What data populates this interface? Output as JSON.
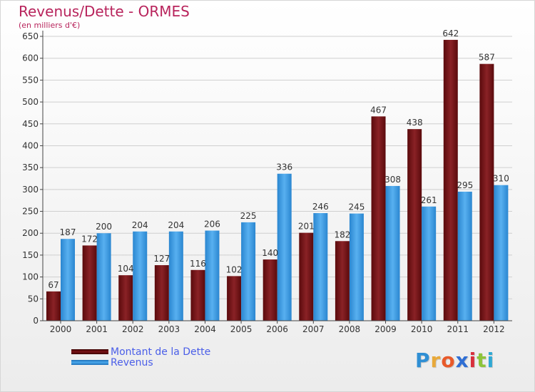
{
  "header": {
    "title": "Revenus/Dette - ORMES",
    "subtitle": "(en milliers d'€)"
  },
  "chart_data": {
    "type": "bar",
    "categories": [
      "2000",
      "2001",
      "2002",
      "2003",
      "2004",
      "2005",
      "2006",
      "2007",
      "2008",
      "2009",
      "2010",
      "2011",
      "2012"
    ],
    "series": [
      {
        "name": "Montant de la Dette",
        "color": "#6b0d10",
        "values": [
          67,
          172,
          104,
          127,
          116,
          102,
          140,
          201,
          182,
          467,
          438,
          642,
          587
        ]
      },
      {
        "name": "Revenus",
        "color": "#3a9be0",
        "values": [
          187,
          200,
          204,
          204,
          206,
          225,
          336,
          246,
          245,
          308,
          261,
          295,
          310
        ]
      }
    ],
    "ylim": [
      0,
      650
    ],
    "yticks": [
      0,
      50,
      100,
      150,
      200,
      250,
      300,
      350,
      400,
      450,
      500,
      550,
      600,
      650
    ],
    "grid": true,
    "legend": "bottom-left"
  },
  "legend": {
    "items": [
      {
        "label": "Montant de la Dette",
        "color": "#6b0d10"
      },
      {
        "label": "Revenus",
        "color": "#3a9be0"
      }
    ]
  },
  "logo": {
    "letters": [
      "P",
      "r",
      "o",
      "x",
      "i",
      "t",
      "i"
    ]
  }
}
